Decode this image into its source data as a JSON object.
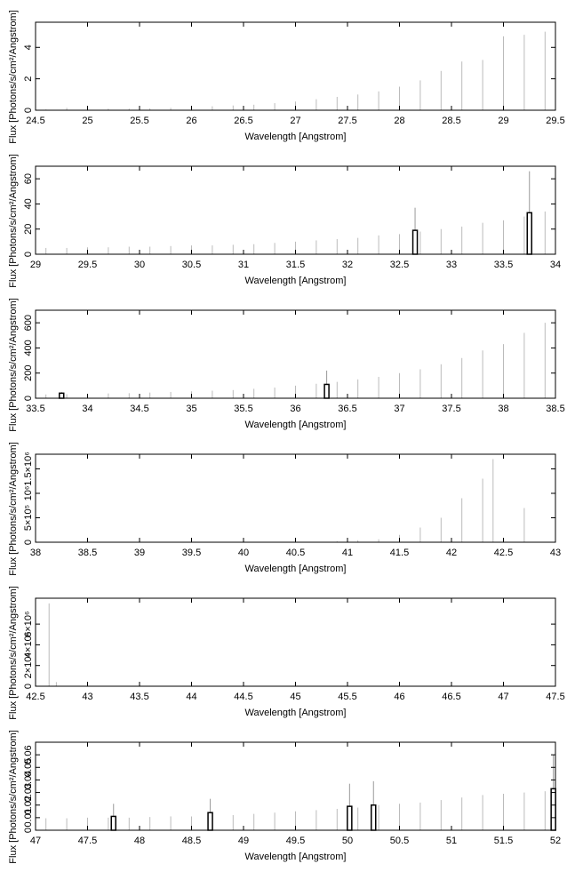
{
  "chart_data": [
    {
      "type": "bar",
      "xlabel": "Wavelength [Angstrom]",
      "ylabel": "Flux [Photons/s/cm²/Angstrom]",
      "x": [
        24.6,
        24.8,
        25.0,
        25.2,
        25.4,
        25.6,
        25.8,
        26.0,
        26.2,
        26.4,
        26.6,
        26.8,
        27.0,
        27.2,
        27.4,
        27.6,
        27.8,
        28.0,
        28.2,
        28.4,
        28.6,
        28.8,
        29.0,
        29.2,
        29.4
      ],
      "values": [
        0.05,
        0.15,
        0.08,
        0.1,
        0.1,
        0.12,
        0.15,
        0.2,
        0.25,
        0.3,
        0.35,
        0.45,
        0.55,
        0.7,
        0.85,
        1.0,
        1.2,
        1.5,
        1.9,
        2.5,
        3.1,
        3.2,
        4.7,
        4.8,
        5.0
      ],
      "color": "#bbbbbb",
      "xlim": [
        24.5,
        29.5
      ],
      "ylim": [
        0,
        5.6
      ],
      "xticks": [
        24.5,
        25,
        25.5,
        26,
        26.5,
        27,
        27.5,
        28,
        28.5,
        29,
        29.5
      ],
      "yticks": [
        0,
        2,
        4
      ]
    },
    {
      "type": "bar",
      "xlabel": "Wavelength [Angstrom]",
      "ylabel": "Flux [Photons/s/cm²/Angstrom]",
      "x": [
        29.1,
        29.3,
        29.5,
        29.7,
        29.9,
        30.1,
        30.3,
        30.5,
        30.7,
        30.9,
        31.1,
        31.3,
        31.5,
        31.7,
        31.9,
        32.1,
        32.3,
        32.5,
        32.7,
        32.9,
        33.1,
        33.3,
        33.5,
        33.7,
        33.9
      ],
      "values": [
        5,
        5,
        5.5,
        5.5,
        6,
        6,
        6.5,
        7,
        7,
        7.5,
        8,
        9,
        10,
        11,
        12,
        13,
        15,
        16,
        18,
        20,
        22,
        25,
        27,
        30,
        34
      ],
      "color": "#bbbbbb",
      "xlim": [
        29,
        34
      ],
      "ylim": [
        0,
        70
      ],
      "xticks": [
        29,
        29.5,
        30,
        30.5,
        31,
        31.5,
        32,
        32.5,
        33,
        33.5,
        34
      ],
      "yticks": [
        0,
        20,
        40,
        60
      ],
      "highlight": {
        "color": "#000000",
        "x": [
          32.65,
          33.75
        ],
        "values": [
          19,
          33
        ],
        "upper": [
          37,
          66
        ]
      }
    },
    {
      "type": "bar",
      "xlabel": "Wavelength [Angstrom]",
      "ylabel": "Flux [Photons/s/cm²/Angstrom]",
      "x": [
        33.6,
        33.8,
        34.0,
        34.2,
        34.4,
        34.6,
        34.8,
        35.0,
        35.2,
        35.4,
        35.6,
        35.8,
        36.0,
        36.2,
        36.4,
        36.6,
        36.8,
        37.0,
        37.2,
        37.4,
        37.6,
        37.8,
        38.0,
        38.2,
        38.4
      ],
      "values": [
        30,
        32,
        35,
        38,
        40,
        45,
        50,
        55,
        60,
        65,
        75,
        85,
        100,
        115,
        130,
        150,
        170,
        200,
        230,
        270,
        320,
        380,
        430,
        520,
        600
      ],
      "color": "#bbbbbb",
      "xlim": [
        33.5,
        38.5
      ],
      "ylim": [
        0,
        700
      ],
      "xticks": [
        33.5,
        34,
        34.5,
        35,
        35.5,
        36,
        36.5,
        37,
        37.5,
        38,
        38.5
      ],
      "yticks": [
        0,
        200,
        400,
        600
      ],
      "highlight": {
        "color": "#000000",
        "x": [
          33.75,
          36.3
        ],
        "values": [
          40,
          110
        ],
        "upper": [
          50,
          220
        ]
      }
    },
    {
      "type": "bar",
      "xlabel": "Wavelength [Angstrom]",
      "ylabel": "Flux [Photons/s/cm²/Angstrom]",
      "x": [
        38.1,
        38.3,
        38.5,
        38.7,
        38.9,
        39.1,
        39.3,
        39.5,
        39.7,
        39.9,
        40.1,
        40.3,
        40.5,
        40.7,
        40.9,
        41.1,
        41.3,
        41.5,
        41.7,
        41.9,
        42.1,
        42.3,
        42.4,
        42.7,
        42.9
      ],
      "values": [
        2000,
        2000,
        2000,
        2000,
        2000,
        2000,
        2000,
        2000,
        2000,
        2000,
        2000,
        3000,
        5000,
        8000,
        20000,
        40000,
        60000,
        150000,
        300000,
        500000,
        900000,
        1300000,
        1700000,
        700000,
        2000
      ],
      "color": "#bbbbbb",
      "xlim": [
        38,
        43
      ],
      "ylim": [
        0,
        1800000
      ],
      "xticks": [
        38,
        38.5,
        39,
        39.5,
        40,
        40.5,
        41,
        41.5,
        42,
        42.5,
        43
      ],
      "yticks": [
        0,
        {
          "value": 500000,
          "label": "5×10⁵"
        },
        {
          "value": 1000000,
          "label": "10⁶"
        },
        {
          "value": 1500000,
          "label": "1.5×10⁶"
        }
      ]
    },
    {
      "type": "bar",
      "xlabel": "Wavelength [Angstrom]",
      "ylabel": "Flux [Photons/s/cm²/Angstrom]",
      "x": [
        42.63,
        42.7,
        43.0,
        43.5,
        44.0,
        44.5,
        45.0,
        45.5,
        46.0,
        46.5,
        47.0
      ],
      "values": [
        8000000,
        400000,
        100000,
        20000,
        10000,
        10000,
        5000,
        5000,
        5000,
        5000,
        5000
      ],
      "color": "#bbbbbb",
      "xlim": [
        42.5,
        47.5
      ],
      "ylim": [
        0,
        8500000
      ],
      "xticks": [
        42.5,
        43,
        43.5,
        44,
        44.5,
        45,
        45.5,
        46,
        46.5,
        47,
        47.5
      ],
      "yticks": [
        0,
        {
          "value": 2000000,
          "label": "2×10⁶"
        },
        {
          "value": 4000000,
          "label": "4×10⁶"
        },
        {
          "value": 6000000,
          "label": "6×10⁶"
        }
      ]
    },
    {
      "type": "bar",
      "xlabel": "Wavelength [Angstrom]",
      "ylabel": "Flux [Photons/s/cm²/Angstrom]",
      "x": [
        47.1,
        47.3,
        47.5,
        47.7,
        47.9,
        48.1,
        48.3,
        48.5,
        48.7,
        48.9,
        49.1,
        49.3,
        49.5,
        49.7,
        49.9,
        50.1,
        50.3,
        50.5,
        50.7,
        50.9,
        51.1,
        51.3,
        51.5,
        51.7,
        51.9
      ],
      "values": [
        0.0095,
        0.0095,
        0.01,
        0.01,
        0.01,
        0.0105,
        0.011,
        0.011,
        0.012,
        0.012,
        0.013,
        0.014,
        0.015,
        0.016,
        0.017,
        0.018,
        0.02,
        0.021,
        0.022,
        0.024,
        0.026,
        0.028,
        0.029,
        0.03,
        0.031
      ],
      "color": "#bbbbbb",
      "xlim": [
        47,
        52
      ],
      "ylim": [
        0,
        0.07
      ],
      "xticks": [
        47,
        47.5,
        48,
        48.5,
        49,
        49.5,
        50,
        50.5,
        51,
        51.5,
        52
      ],
      "yticks": [
        0,
        0.01,
        0.02,
        0.03,
        0.04,
        0.05,
        0.06
      ],
      "highlight": {
        "color": "#000000",
        "x": [
          47.75,
          48.68,
          50.02,
          50.25,
          51.98
        ],
        "values": [
          0.011,
          0.014,
          0.019,
          0.02,
          0.033
        ],
        "upper": [
          0.021,
          0.025,
          0.037,
          0.039,
          0.06
        ]
      }
    }
  ]
}
